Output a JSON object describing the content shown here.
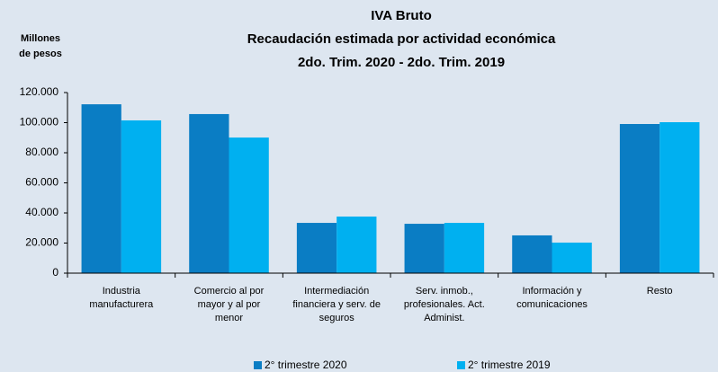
{
  "chart_data": {
    "type": "bar",
    "title": "IVA Bruto",
    "subtitle": [
      "Recaudación estimada por actividad económica",
      "2do. Trim. 2020 - 2do. Trim. 2019"
    ],
    "ylabel": [
      "Millones",
      "de pesos"
    ],
    "categories": [
      [
        "Industria",
        "manufacturera"
      ],
      [
        "Comercio al por",
        "mayor y al por",
        "menor"
      ],
      [
        "Intermediación",
        "financiera y serv. de",
        "seguros"
      ],
      [
        "Serv. inmob.,",
        "profesionales. Act.",
        "Administ."
      ],
      [
        "Información y",
        "comunicaciones"
      ],
      [
        "Resto"
      ]
    ],
    "series": [
      {
        "name": "2° trimestre 2020",
        "color": "#0a7dc4",
        "values": [
          112200,
          105700,
          33400,
          32800,
          25100,
          99100
        ]
      },
      {
        "name": "2° trimestre 2019",
        "color": "#00b0f0",
        "values": [
          101500,
          90100,
          37600,
          33400,
          20300,
          100300
        ]
      }
    ],
    "ylim": [
      0,
      120000
    ],
    "yticks": [
      0,
      {
        "value": 20000,
        "label": "20.000"
      },
      {
        "value": 40000,
        "label": "40.000"
      },
      {
        "value": 60000,
        "label": "60.000"
      },
      {
        "value": 80000,
        "label": "80.000"
      },
      {
        "value": 100000,
        "label": "100.000"
      },
      {
        "value": 120000,
        "label": "120.000"
      }
    ],
    "grid": false,
    "legend": "bottom"
  }
}
